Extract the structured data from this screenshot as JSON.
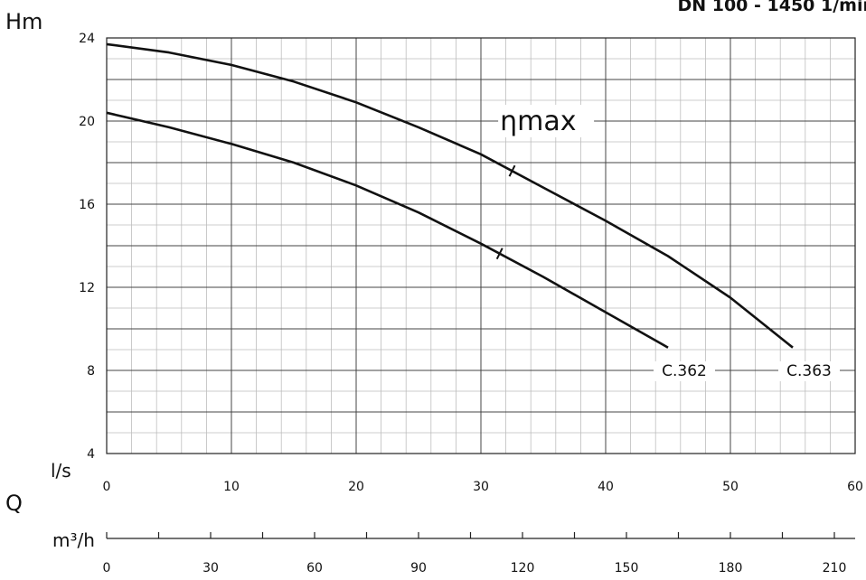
{
  "chart_data": {
    "type": "line",
    "title": "DN 100 - 1450 1/min",
    "ylabel": "Hm",
    "xlabel": "Q",
    "x_unit_primary": "l/s",
    "x_unit_secondary": "m³/h",
    "xlim": [
      0,
      60
    ],
    "ylim": [
      4,
      24
    ],
    "x_ticks": [
      0,
      10,
      20,
      30,
      40,
      50,
      60
    ],
    "y_ticks": [
      4,
      8,
      12,
      16,
      20,
      24
    ],
    "secondary_ticks": [
      0,
      30,
      60,
      90,
      120,
      150,
      180,
      210
    ],
    "grid": true,
    "annotation": "ηmax",
    "series": [
      {
        "name": "C.362",
        "points": [
          [
            0,
            20.4
          ],
          [
            5,
            19.7
          ],
          [
            10,
            18.9
          ],
          [
            15,
            18.0
          ],
          [
            20,
            16.9
          ],
          [
            25,
            15.6
          ],
          [
            30,
            14.1
          ],
          [
            35,
            12.5
          ],
          [
            40,
            10.8
          ],
          [
            45,
            9.1
          ]
        ],
        "eta_max_q": 31.5
      },
      {
        "name": "C.363",
        "points": [
          [
            0,
            23.7
          ],
          [
            5,
            23.3
          ],
          [
            10,
            22.7
          ],
          [
            15,
            21.9
          ],
          [
            20,
            20.9
          ],
          [
            25,
            19.7
          ],
          [
            30,
            18.4
          ],
          [
            35,
            16.8
          ],
          [
            40,
            15.2
          ],
          [
            45,
            13.5
          ],
          [
            50,
            11.5
          ],
          [
            55,
            9.1
          ]
        ],
        "eta_max_q": 32.5
      }
    ]
  }
}
